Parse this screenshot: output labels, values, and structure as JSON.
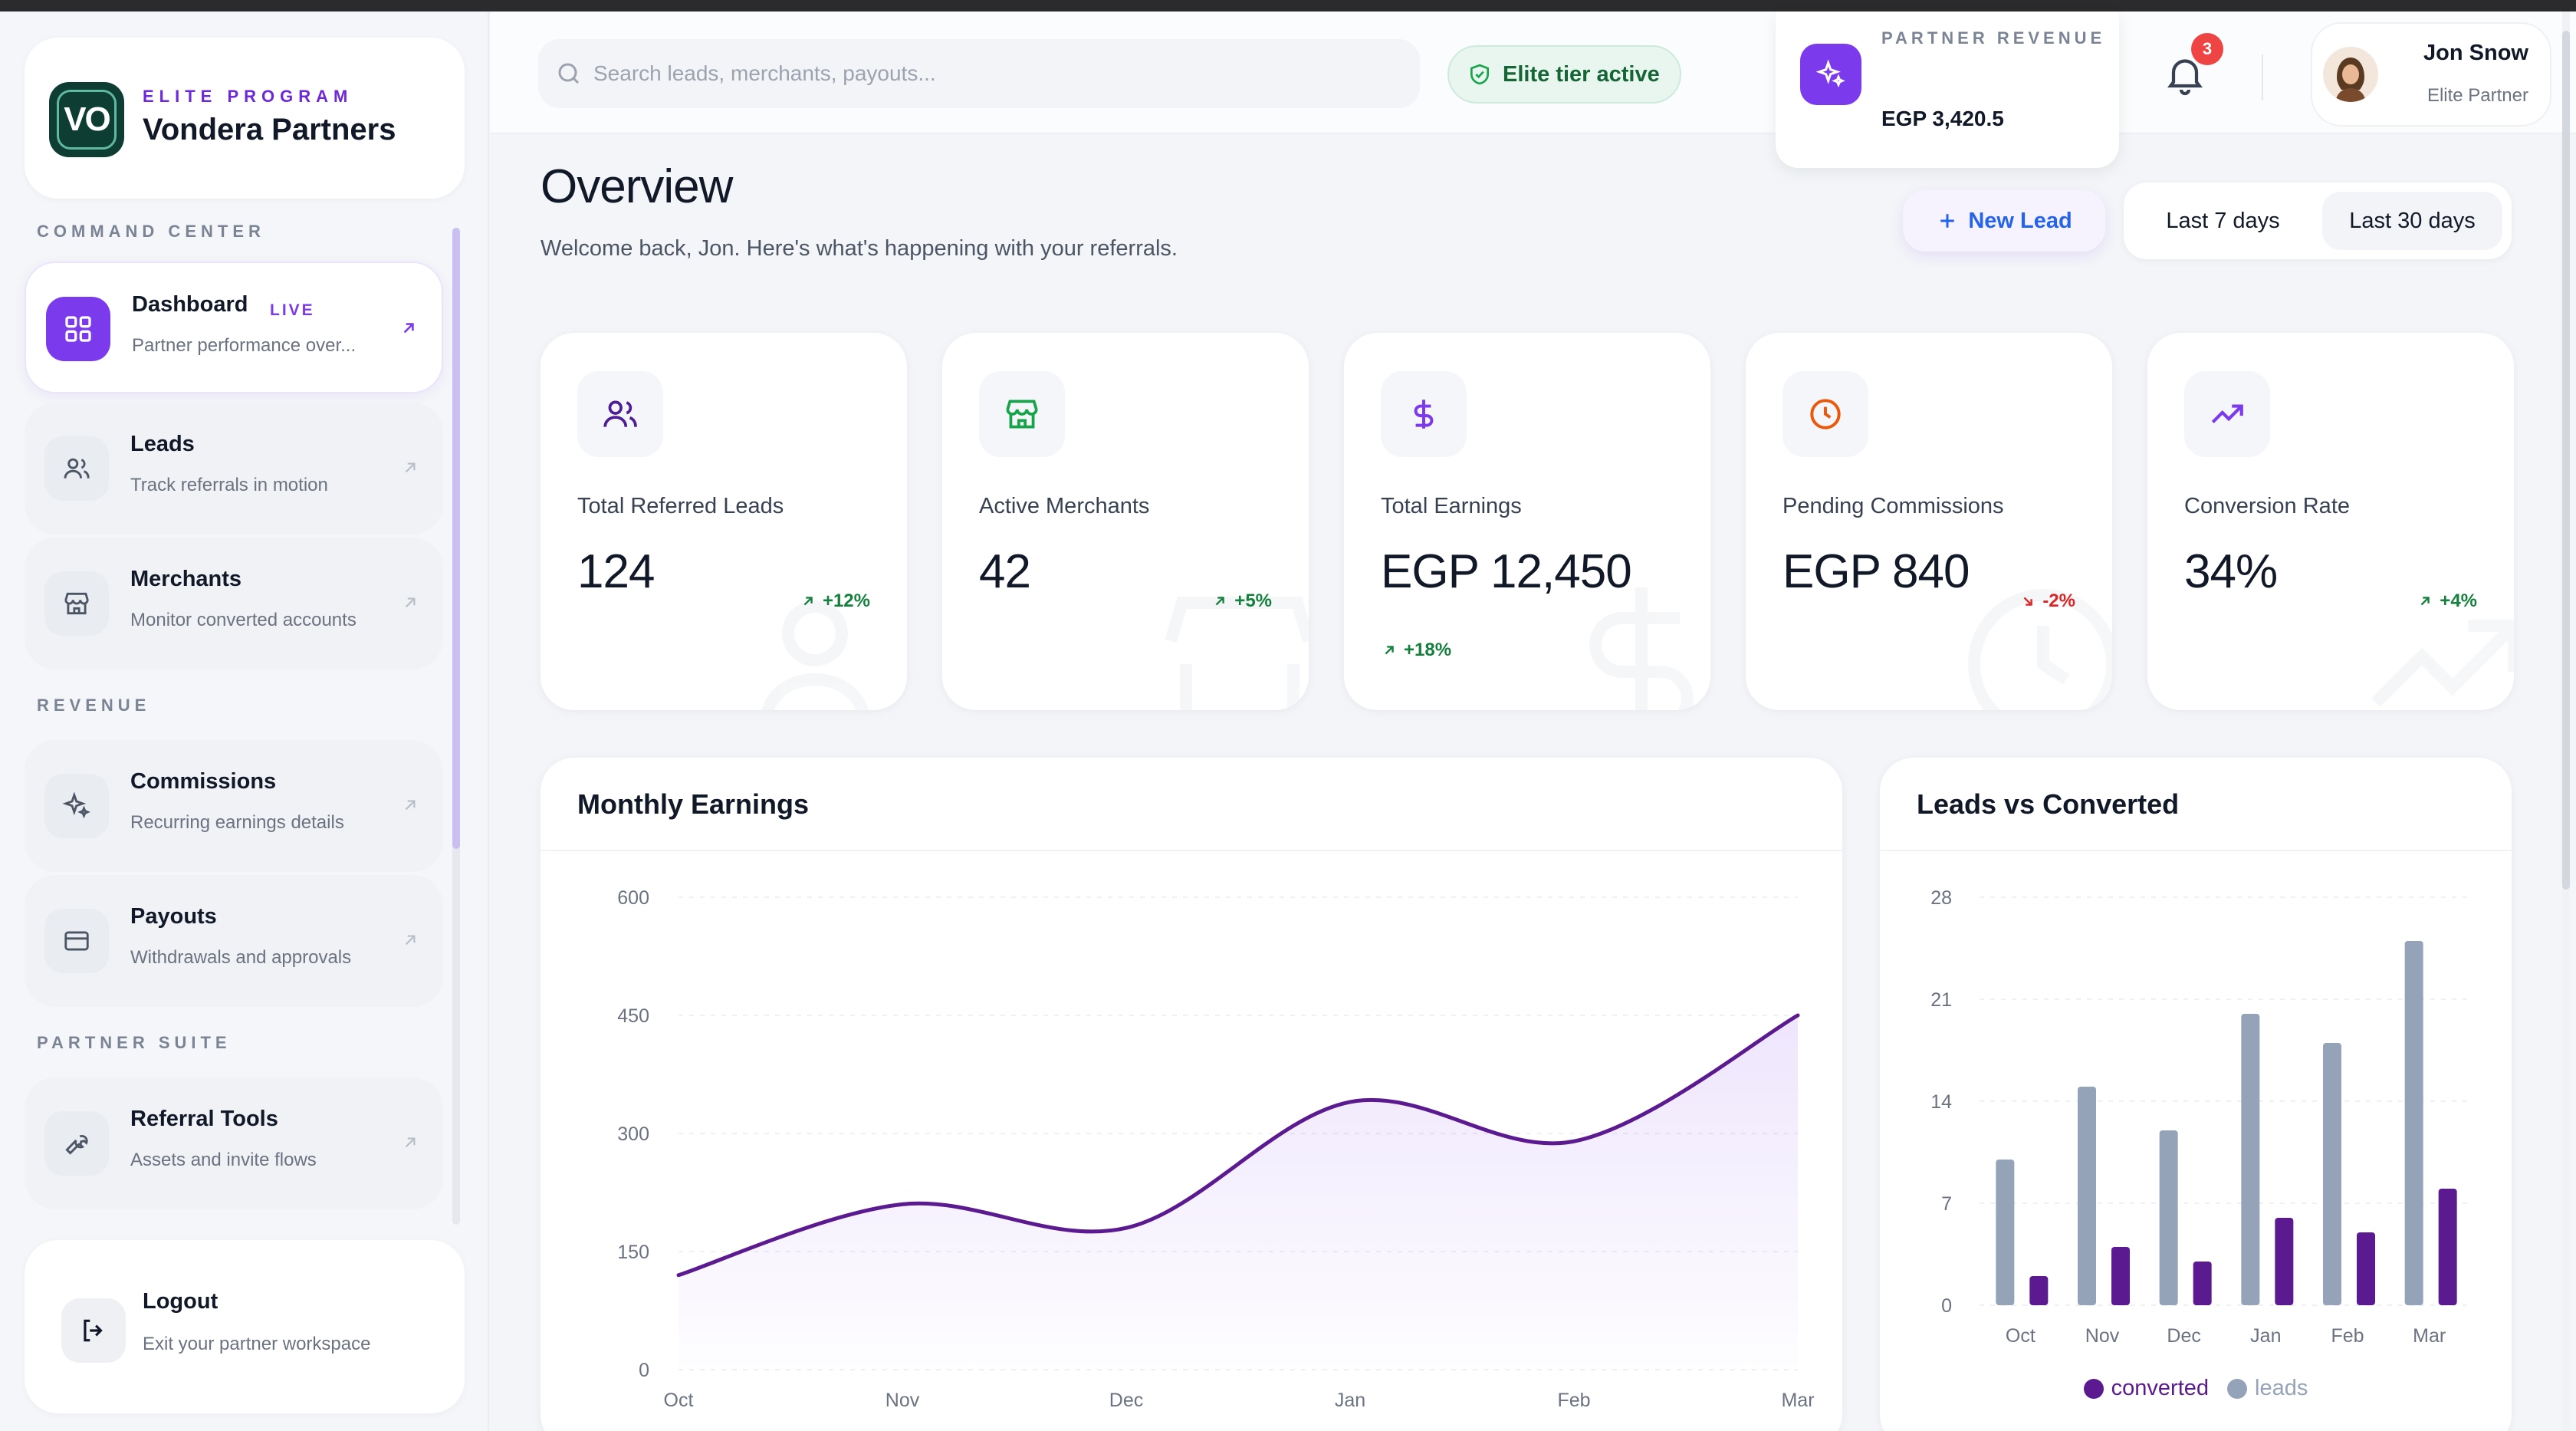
{
  "brand": {
    "eyebrow": "ELITE PROGRAM",
    "name": "Vondera Partners",
    "logo_text": "VO"
  },
  "sidebar": {
    "sections": [
      {
        "label": "COMMAND CENTER",
        "items": [
          {
            "title": "Dashboard",
            "subtitle": "Partner performance over...",
            "badge": "LIVE",
            "icon": "grid-icon",
            "active": true
          },
          {
            "title": "Leads",
            "subtitle": "Track referrals in motion",
            "icon": "users-icon"
          },
          {
            "title": "Merchants",
            "subtitle": "Monitor converted accounts",
            "icon": "store-icon"
          }
        ]
      },
      {
        "label": "REVENUE",
        "items": [
          {
            "title": "Commissions",
            "subtitle": "Recurring earnings details",
            "icon": "sparkles-icon"
          },
          {
            "title": "Payouts",
            "subtitle": "Withdrawals and approvals",
            "icon": "card-icon"
          }
        ]
      },
      {
        "label": "PARTNER SUITE",
        "items": [
          {
            "title": "Referral Tools",
            "subtitle": "Assets and invite flows",
            "icon": "wrench-icon"
          }
        ]
      }
    ],
    "logout": {
      "title": "Logout",
      "subtitle": "Exit your partner workspace"
    }
  },
  "header": {
    "search_placeholder": "Search leads, merchants, payouts...",
    "tier_label": "Elite tier active",
    "revenue_label": "PARTNER REVENUE",
    "revenue_value": "EGP 3,420.5",
    "notification_count": "3",
    "user_name": "Jon Snow",
    "user_role": "Elite Partner"
  },
  "page": {
    "title": "Overview",
    "subtitle": "Welcome back, Jon. Here's what's happening with your referrals.",
    "new_lead_label": "New Lead",
    "ranges": [
      "Last 7 days",
      "Last 30 days"
    ],
    "active_range": "Last 30 days"
  },
  "kpis": [
    {
      "label": "Total Referred Leads",
      "value": "124",
      "delta": "+12%",
      "trend": "up",
      "icon": "users-icon",
      "color": "#6d28d9"
    },
    {
      "label": "Active Merchants",
      "value": "42",
      "delta": "+5%",
      "trend": "up",
      "icon": "store-icon",
      "color": "#16a34a"
    },
    {
      "label": "Total Earnings",
      "value": "EGP 12,450",
      "delta": "+18%",
      "trend": "up",
      "icon": "dollar-icon",
      "color": "#7c3aed"
    },
    {
      "label": "Pending Commissions",
      "value": "EGP 840",
      "delta": "-2%",
      "trend": "down",
      "icon": "clock-icon",
      "color": "#ea580c"
    },
    {
      "label": "Conversion Rate",
      "value": "34%",
      "delta": "+4%",
      "trend": "up",
      "icon": "trending-up-icon",
      "color": "#7c3aed"
    }
  ],
  "chart_data": [
    {
      "type": "area",
      "title": "Monthly Earnings",
      "categories": [
        "Oct",
        "Nov",
        "Dec",
        "Jan",
        "Feb",
        "Mar"
      ],
      "series": [
        {
          "values": [
            120,
            210,
            180,
            340,
            290,
            450
          ]
        }
      ],
      "yticks": [
        0,
        150,
        300,
        450,
        600
      ],
      "ylim": [
        0,
        600
      ],
      "grid": true,
      "color": "#5b1a8f"
    },
    {
      "type": "bar",
      "title": "Leads vs Converted",
      "categories": [
        "Oct",
        "Nov",
        "Dec",
        "Jan",
        "Feb",
        "Mar"
      ],
      "series": [
        {
          "name": "leads",
          "values": [
            10,
            15,
            12,
            20,
            18,
            25
          ],
          "color": "#94a3b8"
        },
        {
          "name": "converted",
          "values": [
            2,
            4,
            3,
            6,
            5,
            8
          ],
          "color": "#5b1a8f"
        }
      ],
      "yticks": [
        0,
        7,
        14,
        21,
        28
      ],
      "ylim": [
        0,
        28
      ],
      "grid": true,
      "legend": "bottom"
    }
  ]
}
